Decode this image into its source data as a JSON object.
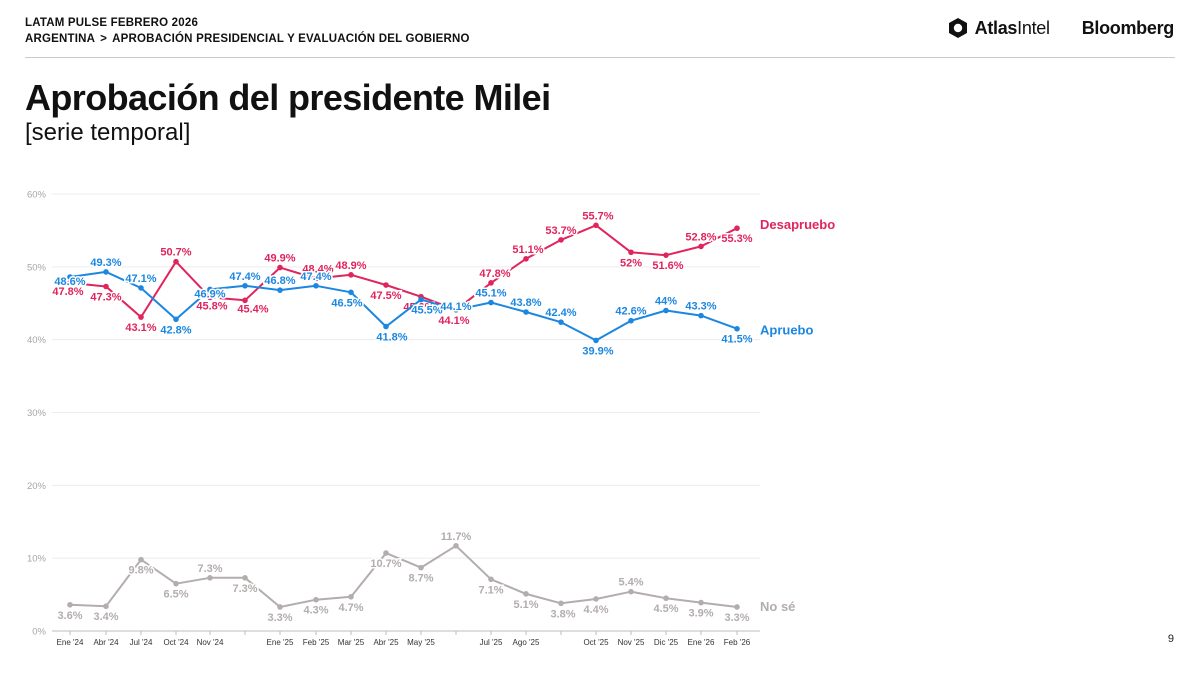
{
  "header": {
    "kicker": "LATAM PULSE FEBRERO 2026",
    "breadcrumb_parent": "ARGENTINA",
    "breadcrumb_separator": ">",
    "breadcrumb_child": "APROBACIÓN PRESIDENCIAL Y EVALUACIÓN DEL GOBIERNO",
    "brand_atlas_bold": "Atlas",
    "brand_atlas_regular": "Intel",
    "brand_bloomberg": "Bloomberg"
  },
  "title": "Aprobación del presidente Milei",
  "subtitle": "[serie temporal]",
  "page_number": "9",
  "chart_data": {
    "type": "line",
    "y_ticks": [
      "0%",
      "10%",
      "20%",
      "30%",
      "40%",
      "50%",
      "60%"
    ],
    "ylim": [
      0,
      60
    ],
    "grid": true,
    "x": [
      "Ene '24",
      "Abr '24",
      "Jul '24",
      "Oct '24",
      "Nov '24",
      "",
      "Ene '25",
      "Feb '25",
      "Mar '25",
      "Abr '25",
      "May '25",
      "",
      "Jul '25",
      "Ago '25",
      "",
      "Oct '25",
      "Nov '25",
      "Dic '25",
      "Ene '26",
      "Feb '26"
    ],
    "series": [
      {
        "name": "Desapruebo",
        "color": "#e0245e",
        "values": [
          47.8,
          47.3,
          43.1,
          50.7,
          45.8,
          45.4,
          49.9,
          48.4,
          48.9,
          47.5,
          45.9,
          44.1,
          47.8,
          51.1,
          53.7,
          55.7,
          52,
          51.6,
          52.8,
          55.3
        ],
        "labels": [
          "47.8%",
          "47.3%",
          "43.1%",
          "50.7%",
          "45.8%",
          "45.4%",
          "49.9%",
          "48.4%",
          "48.9%",
          "47.5%",
          "45.9%",
          "44.1%",
          "47.8%",
          "51.1%",
          "53.7%",
          "55.7%",
          "52%",
          "51.6%",
          "52.8%",
          "55.3%"
        ]
      },
      {
        "name": "Apruebo",
        "color": "#1c87e0",
        "values": [
          48.6,
          49.3,
          47.1,
          42.8,
          46.9,
          47.4,
          46.8,
          47.4,
          46.5,
          41.8,
          45.5,
          44.1,
          45.1,
          43.8,
          42.4,
          39.9,
          42.6,
          44,
          43.3,
          41.5
        ],
        "labels": [
          "48.6%",
          "49.3%",
          "47.1%",
          "42.8%",
          "46.9%",
          "47.4%",
          "46.8%",
          "47.4%",
          "46.5%",
          "41.8%",
          "45.5%",
          "44.1%",
          "45.1%",
          "43.8%",
          "42.4%",
          "39.9%",
          "42.6%",
          "44%",
          "43.3%",
          "41.5%"
        ]
      },
      {
        "name": "No sé",
        "color": "#b3adad",
        "values": [
          3.6,
          3.4,
          9.8,
          6.5,
          7.3,
          7.3,
          3.3,
          4.3,
          4.7,
          10.7,
          8.7,
          11.7,
          7.1,
          5.1,
          3.8,
          4.4,
          5.4,
          4.5,
          3.9,
          3.3
        ],
        "labels": [
          "3.6%",
          "3.4%",
          "9.8%",
          "6.5%",
          "7.3%",
          "7.3%",
          "3.3%",
          "4.3%",
          "4.7%",
          "10.7%",
          "8.7%",
          "11.7%",
          "7.1%",
          "5.1%",
          "3.8%",
          "4.4%",
          "5.4%",
          "4.5%",
          "3.9%",
          "3.3%"
        ]
      }
    ]
  }
}
